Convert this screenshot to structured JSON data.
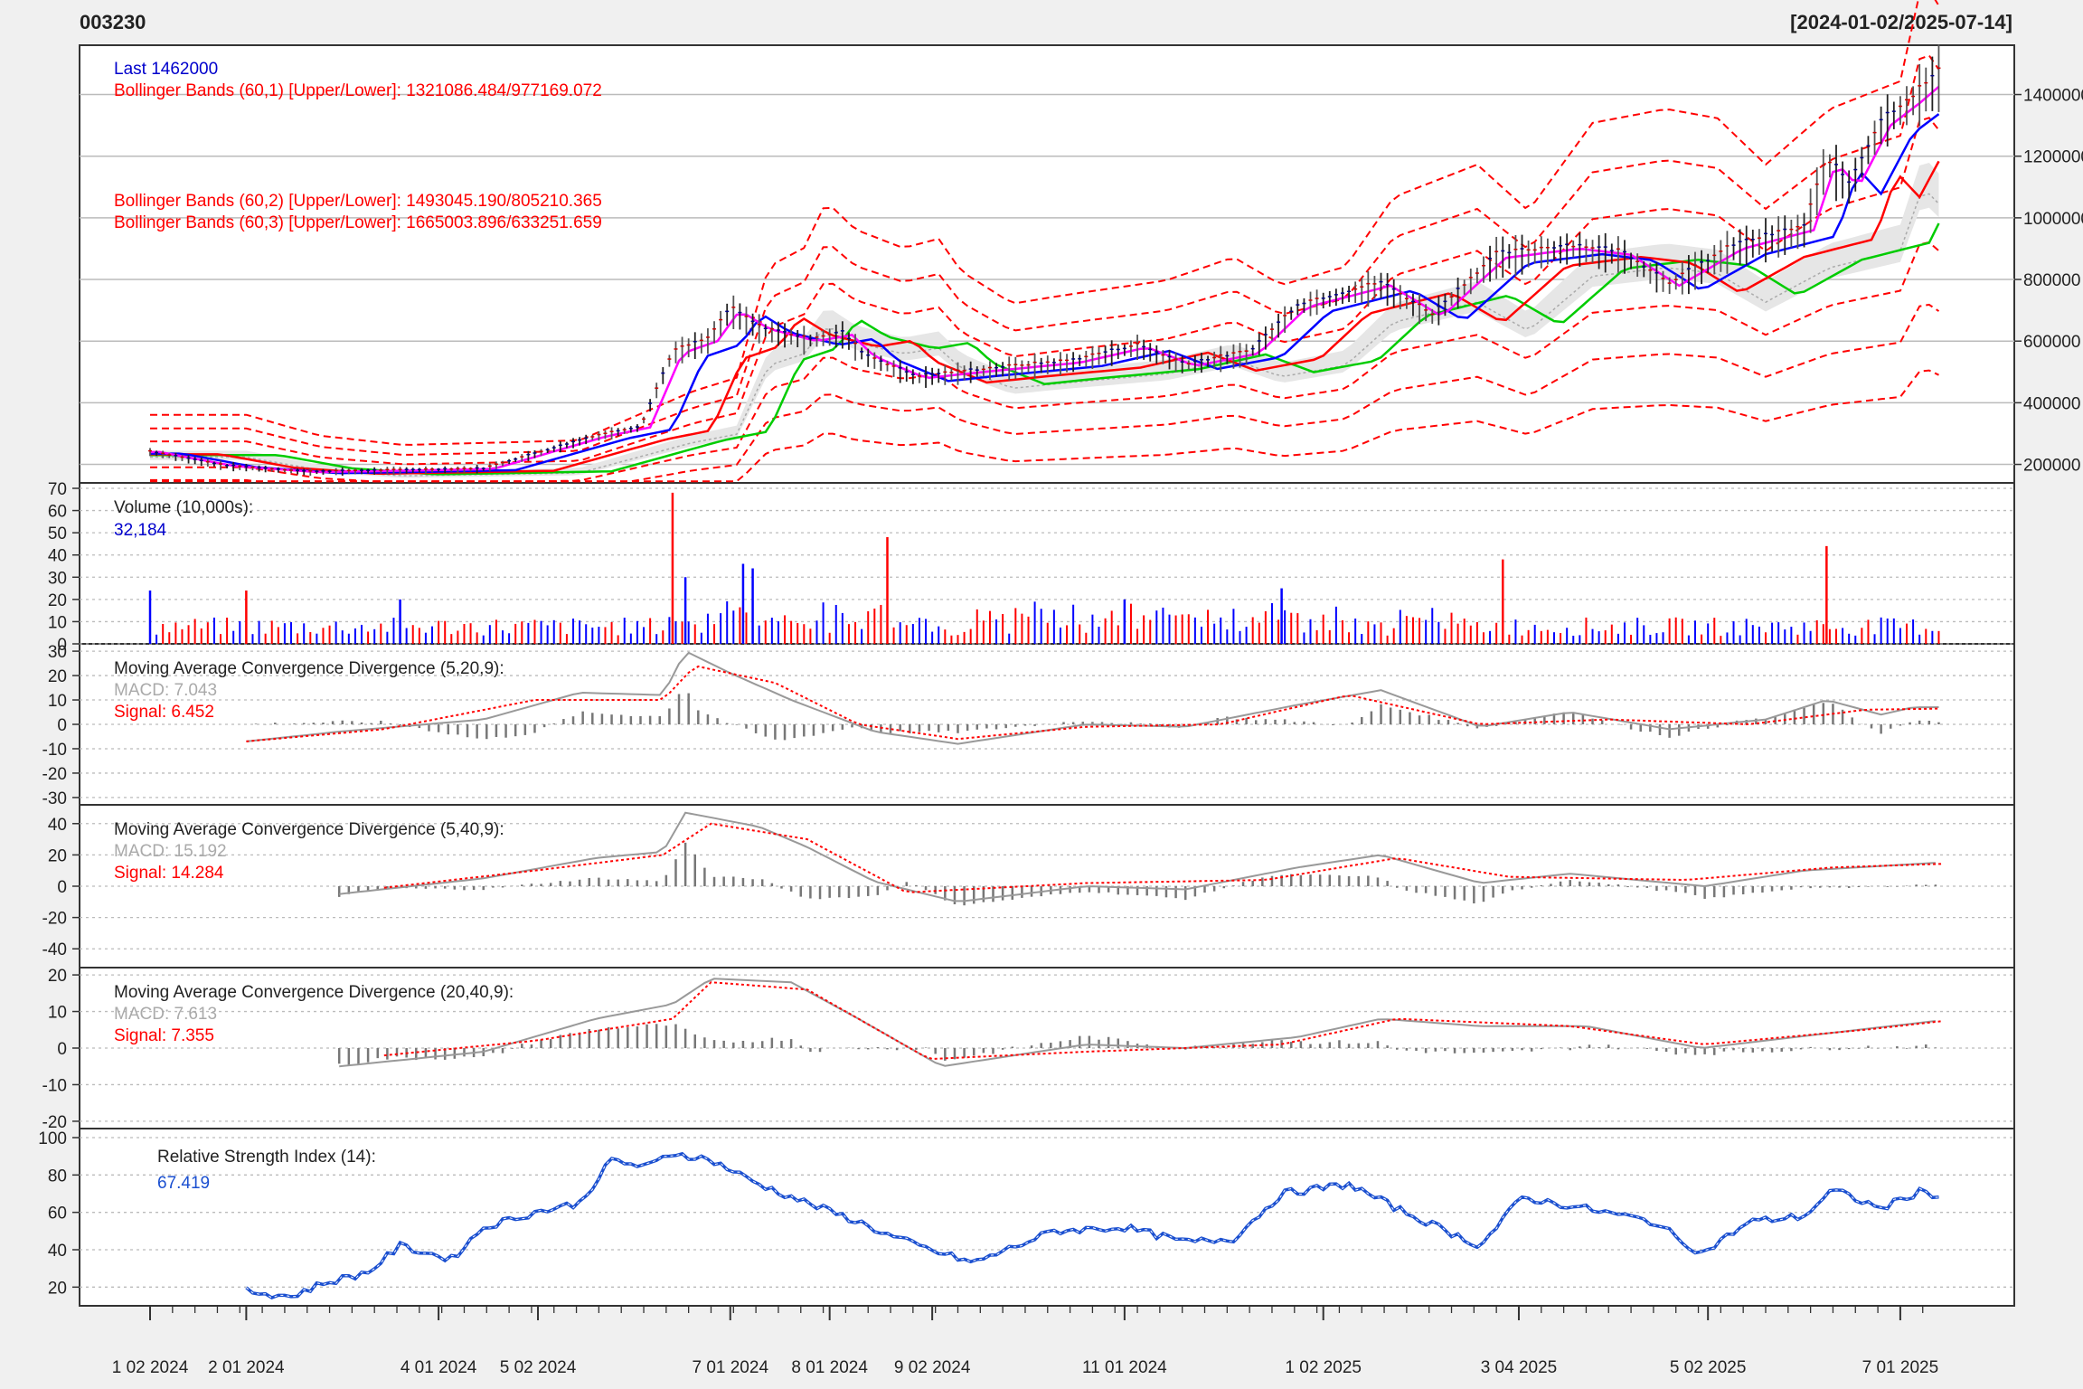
{
  "header": {
    "symbol": "003230",
    "range": "[2024-01-02/2025-07-14]"
  },
  "colors": {
    "price": "#0000cc",
    "up_bar": "#ff0000",
    "down_bar": "#0000ff",
    "bb1": "#ff0000",
    "ma_short": "#ff00ff",
    "ma_mid": "#0000ff",
    "ma_long": "#ff0000",
    "ma_vlong": "#00cc00",
    "macd": "#999999",
    "signal": "#ff0000",
    "rsi": "#1a4fd0",
    "grid": "#bbbbbb"
  },
  "chart_data": [
    {
      "type": "candlestick",
      "title": "003230",
      "x_range": [
        "2024-01-02",
        "2025-07-14"
      ],
      "legend": [
        {
          "text": "Last 1462000",
          "color": "#0000cc"
        },
        {
          "text": "Bollinger Bands (60,1) [Upper/Lower]: 1321086.484/977169.072",
          "color": "#ff0000"
        },
        {
          "text": "Bollinger Bands (60,2) [Upper/Lower]: 1493045.190/805210.365",
          "color": "#ff0000"
        },
        {
          "text": "Bollinger Bands (60,3) [Upper/Lower]: 1665003.896/633251.659",
          "color": "#ff0000"
        }
      ],
      "y_ticks": [
        "200000",
        "400000",
        "600000",
        "800000",
        "1000000",
        "1200000",
        "1400000"
      ],
      "y_range": [
        140000,
        1560000
      ],
      "price_points": [
        [
          "2024-01-02",
          240000
        ],
        [
          "2024-01-25",
          195000
        ],
        [
          "2024-02-20",
          175000
        ],
        [
          "2024-03-20",
          180000
        ],
        [
          "2024-04-15",
          185000
        ],
        [
          "2024-04-30",
          230000
        ],
        [
          "2024-05-20",
          290000
        ],
        [
          "2024-06-03",
          320000
        ],
        [
          "2024-06-13",
          560000
        ],
        [
          "2024-06-24",
          600000
        ],
        [
          "2024-07-01",
          700000
        ],
        [
          "2024-07-10",
          640000
        ],
        [
          "2024-07-25",
          600000
        ],
        [
          "2024-08-05",
          620000
        ],
        [
          "2024-08-12",
          550000
        ],
        [
          "2024-08-28",
          480000
        ],
        [
          "2024-09-15",
          500000
        ],
        [
          "2024-10-15",
          530000
        ],
        [
          "2024-11-05",
          580000
        ],
        [
          "2024-11-20",
          520000
        ],
        [
          "2024-12-10",
          560000
        ],
        [
          "2024-12-25",
          710000
        ],
        [
          "2025-01-20",
          780000
        ],
        [
          "2025-02-05",
          680000
        ],
        [
          "2025-02-25",
          870000
        ],
        [
          "2025-03-20",
          900000
        ],
        [
          "2025-04-05",
          880000
        ],
        [
          "2025-04-20",
          780000
        ],
        [
          "2025-05-10",
          900000
        ],
        [
          "2025-06-01",
          960000
        ],
        [
          "2025-06-08",
          1180000
        ],
        [
          "2025-06-15",
          1100000
        ],
        [
          "2025-06-25",
          1300000
        ],
        [
          "2025-07-05",
          1380000
        ],
        [
          "2025-07-14",
          1462000
        ]
      ]
    },
    {
      "type": "bar",
      "title": "Volume (10,000s):",
      "last_value": "32,184",
      "y_ticks": [
        "0",
        "10",
        "20",
        "30",
        "40",
        "50",
        "60",
        "70"
      ],
      "y_range": [
        0,
        70
      ],
      "spikes": [
        [
          "2024-01-02",
          24
        ],
        [
          "2024-02-01",
          24
        ],
        [
          "2024-03-20",
          20
        ],
        [
          "2024-06-13",
          68
        ],
        [
          "2024-06-17",
          30
        ],
        [
          "2024-07-05",
          36
        ],
        [
          "2024-07-08",
          34
        ],
        [
          "2024-08-19",
          48
        ],
        [
          "2024-11-01",
          20
        ],
        [
          "2024-12-20",
          25
        ],
        [
          "2025-02-27",
          38
        ],
        [
          "2025-06-08",
          44
        ]
      ],
      "typical_level": 6
    },
    {
      "type": "line",
      "title": "Moving Average Convergence Divergence (5,20,9):",
      "legend": [
        {
          "text": "MACD: 7.043",
          "color": "#aaaaaa"
        },
        {
          "text": "Signal: 6.452",
          "color": "#ff0000"
        }
      ],
      "y_ticks": [
        "-30",
        "-20",
        "-10",
        "0",
        "10",
        "20",
        "30"
      ],
      "y_range": [
        -33,
        33
      ],
      "macd_points": [
        [
          "2024-02-01",
          -7
        ],
        [
          "2024-03-01",
          -3
        ],
        [
          "2024-04-15",
          2
        ],
        [
          "2024-05-15",
          13
        ],
        [
          "2024-06-10",
          12
        ],
        [
          "2024-06-17",
          30
        ],
        [
          "2024-07-01",
          21
        ],
        [
          "2024-07-20",
          10
        ],
        [
          "2024-08-15",
          -3
        ],
        [
          "2024-09-10",
          -8
        ],
        [
          "2024-10-20",
          0
        ],
        [
          "2024-11-20",
          -1
        ],
        [
          "2024-12-25",
          8
        ],
        [
          "2025-01-20",
          14
        ],
        [
          "2025-02-20",
          -1
        ],
        [
          "2025-03-20",
          5
        ],
        [
          "2025-04-20",
          -2
        ],
        [
          "2025-05-20",
          2
        ],
        [
          "2025-06-08",
          10
        ],
        [
          "2025-06-25",
          4
        ],
        [
          "2025-07-05",
          7
        ],
        [
          "2025-07-14",
          7.043
        ]
      ],
      "signal_points": [
        [
          "2024-02-01",
          -7
        ],
        [
          "2024-03-15",
          -2
        ],
        [
          "2024-05-01",
          10
        ],
        [
          "2024-06-10",
          10
        ],
        [
          "2024-06-20",
          24
        ],
        [
          "2024-07-15",
          17
        ],
        [
          "2024-08-10",
          0
        ],
        [
          "2024-09-10",
          -6
        ],
        [
          "2024-10-20",
          -1
        ],
        [
          "2024-12-01",
          0
        ],
        [
          "2025-01-10",
          12
        ],
        [
          "2025-02-20",
          0
        ],
        [
          "2025-04-01",
          2
        ],
        [
          "2025-05-15",
          0
        ],
        [
          "2025-06-20",
          6
        ],
        [
          "2025-07-14",
          6.452
        ]
      ]
    },
    {
      "type": "line",
      "title": "Moving Average Convergence Divergence (5,40,9):",
      "legend": [
        {
          "text": "MACD: 15.192",
          "color": "#aaaaaa"
        },
        {
          "text": "Signal: 14.284",
          "color": "#ff0000"
        }
      ],
      "y_ticks": [
        "-40",
        "-20",
        "0",
        "20",
        "40"
      ],
      "y_range": [
        -52,
        52
      ],
      "macd_points": [
        [
          "2024-03-01",
          -5
        ],
        [
          "2024-04-15",
          5
        ],
        [
          "2024-05-20",
          18
        ],
        [
          "2024-06-10",
          22
        ],
        [
          "2024-06-17",
          47
        ],
        [
          "2024-07-10",
          38
        ],
        [
          "2024-07-25",
          25
        ],
        [
          "2024-08-15",
          3
        ],
        [
          "2024-09-10",
          -10
        ],
        [
          "2024-10-20",
          0
        ],
        [
          "2024-11-20",
          -2
        ],
        [
          "2024-12-25",
          12
        ],
        [
          "2025-01-20",
          20
        ],
        [
          "2025-02-20",
          2
        ],
        [
          "2025-03-20",
          8
        ],
        [
          "2025-05-01",
          0
        ],
        [
          "2025-06-01",
          10
        ],
        [
          "2025-07-14",
          15.192
        ]
      ],
      "signal_points": [
        [
          "2024-03-15",
          -1
        ],
        [
          "2024-05-01",
          10
        ],
        [
          "2024-06-10",
          20
        ],
        [
          "2024-06-25",
          40
        ],
        [
          "2024-07-25",
          30
        ],
        [
          "2024-08-25",
          -4
        ],
        [
          "2024-10-20",
          2
        ],
        [
          "2024-12-15",
          4
        ],
        [
          "2025-01-25",
          18
        ],
        [
          "2025-03-01",
          6
        ],
        [
          "2025-04-25",
          4
        ],
        [
          "2025-06-10",
          12
        ],
        [
          "2025-07-14",
          14.284
        ]
      ]
    },
    {
      "type": "line",
      "title": "Moving Average Convergence Divergence (20,40,9):",
      "legend": [
        {
          "text": "MACD: 7.613",
          "color": "#aaaaaa"
        },
        {
          "text": "Signal: 7.355",
          "color": "#ff0000"
        }
      ],
      "y_ticks": [
        "-20",
        "-10",
        "0",
        "10",
        "20"
      ],
      "y_range": [
        -22,
        22
      ],
      "macd_points": [
        [
          "2024-03-01",
          -5
        ],
        [
          "2024-04-15",
          -1
        ],
        [
          "2024-05-20",
          8
        ],
        [
          "2024-06-13",
          12
        ],
        [
          "2024-06-25",
          19
        ],
        [
          "2024-07-20",
          18
        ],
        [
          "2024-08-10",
          8
        ],
        [
          "2024-09-05",
          -5
        ],
        [
          "2024-10-20",
          1
        ],
        [
          "2024-11-20",
          0
        ],
        [
          "2024-12-25",
          3
        ],
        [
          "2025-01-20",
          8
        ],
        [
          "2025-02-20",
          6
        ],
        [
          "2025-03-25",
          6
        ],
        [
          "2025-04-30",
          0
        ],
        [
          "2025-06-08",
          4
        ],
        [
          "2025-07-14",
          7.613
        ]
      ],
      "signal_points": [
        [
          "2024-03-15",
          -2
        ],
        [
          "2024-05-01",
          2
        ],
        [
          "2024-06-13",
          8
        ],
        [
          "2024-06-25",
          18
        ],
        [
          "2024-07-25",
          16
        ],
        [
          "2024-09-01",
          -3
        ],
        [
          "2024-10-20",
          -1
        ],
        [
          "2024-12-20",
          1
        ],
        [
          "2025-01-25",
          8
        ],
        [
          "2025-03-20",
          6
        ],
        [
          "2025-05-01",
          1
        ],
        [
          "2025-06-20",
          5
        ],
        [
          "2025-07-14",
          7.355
        ]
      ]
    },
    {
      "type": "line",
      "title": "Relative Strength Index (14):",
      "last_value": "67.419",
      "y_ticks": [
        "20",
        "40",
        "60",
        "80",
        "100"
      ],
      "y_range": [
        10,
        100
      ],
      "rsi_points": [
        [
          "2024-02-01",
          18
        ],
        [
          "2024-02-15",
          15
        ],
        [
          "2024-02-25",
          22
        ],
        [
          "2024-03-10",
          28
        ],
        [
          "2024-03-20",
          42
        ],
        [
          "2024-04-05",
          35
        ],
        [
          "2024-04-15",
          52
        ],
        [
          "2024-05-01",
          60
        ],
        [
          "2024-05-15",
          65
        ],
        [
          "2024-05-25",
          88
        ],
        [
          "2024-06-05",
          84
        ],
        [
          "2024-06-13",
          92
        ],
        [
          "2024-06-25",
          88
        ],
        [
          "2024-07-10",
          75
        ],
        [
          "2024-07-25",
          65
        ],
        [
          "2024-08-10",
          55
        ],
        [
          "2024-08-19",
          48
        ],
        [
          "2024-09-01",
          40
        ],
        [
          "2024-09-15",
          33
        ],
        [
          "2024-10-10",
          50
        ],
        [
          "2024-11-01",
          52
        ],
        [
          "2024-11-20",
          44
        ],
        [
          "2024-12-05",
          46
        ],
        [
          "2024-12-20",
          70
        ],
        [
          "2025-01-10",
          75
        ],
        [
          "2025-01-25",
          62
        ],
        [
          "2025-02-20",
          42
        ],
        [
          "2025-03-05",
          68
        ],
        [
          "2025-03-25",
          62
        ],
        [
          "2025-04-15",
          55
        ],
        [
          "2025-04-30",
          38
        ],
        [
          "2025-05-15",
          55
        ],
        [
          "2025-06-01",
          58
        ],
        [
          "2025-06-10",
          72
        ],
        [
          "2025-06-25",
          62
        ],
        [
          "2025-07-08",
          72
        ],
        [
          "2025-07-14",
          67.419
        ]
      ]
    }
  ],
  "x_axis": {
    "labels": [
      "1 02 2024",
      "2 01 2024",
      "4 01 2024",
      "5 02 2024",
      "7 01 2024",
      "8 01 2024",
      "9 02 2024",
      "11 01 2024",
      "1 02 2025",
      "3 04 2025",
      "5 02 2025",
      "7 01 2025"
    ],
    "label_dates": [
      "2024-01-02",
      "2024-02-01",
      "2024-04-01",
      "2024-05-02",
      "2024-07-01",
      "2024-08-01",
      "2024-09-02",
      "2024-11-01",
      "2025-01-02",
      "2025-03-04",
      "2025-05-02",
      "2025-07-01"
    ]
  }
}
